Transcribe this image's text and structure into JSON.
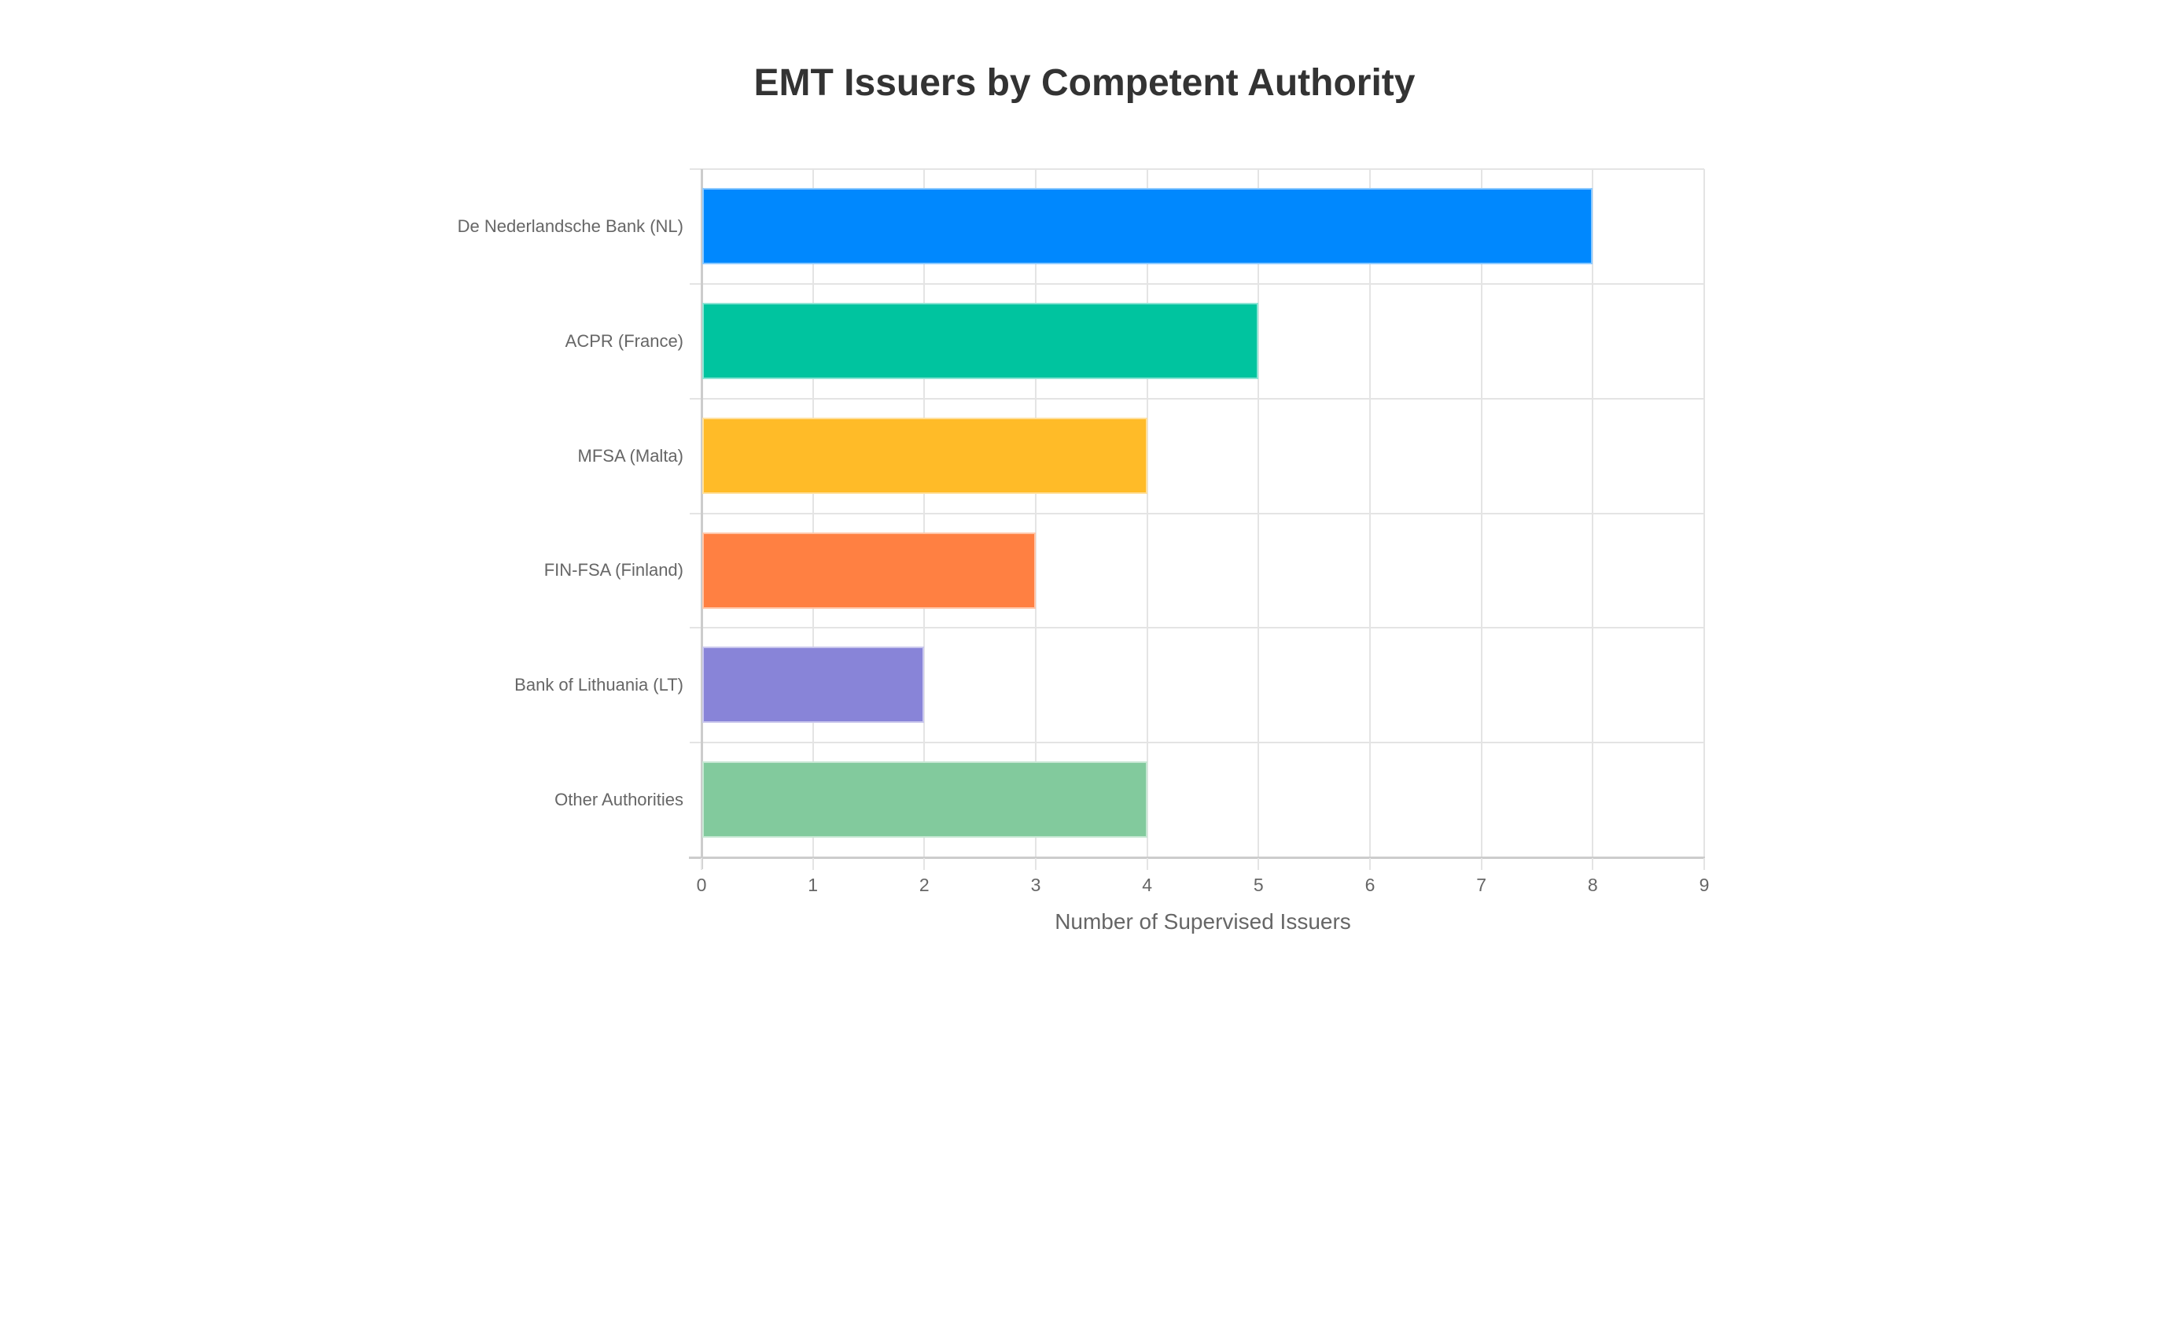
{
  "chart_data": {
    "type": "bar",
    "orientation": "horizontal",
    "title": "EMT Issuers by Competent Authority",
    "xlabel": "Number of Supervised Issuers",
    "ylabel": "",
    "categories": [
      "De Nederlandsche Bank (NL)",
      "ACPR (France)",
      "MFSA (Malta)",
      "FIN-FSA (Finland)",
      "Bank of Lithuania (LT)",
      "Other Authorities"
    ],
    "values": [
      8,
      5,
      4,
      3,
      2,
      4
    ],
    "colors": [
      "#0088FE",
      "#00C49F",
      "#FFBB28",
      "#FF8042",
      "#8884D8",
      "#82CA9D"
    ],
    "xlim": [
      0,
      9
    ],
    "x_ticks": [
      "0",
      "1",
      "2",
      "3",
      "4",
      "5",
      "6",
      "7",
      "8",
      "9"
    ],
    "grid": true,
    "legend": "none"
  }
}
